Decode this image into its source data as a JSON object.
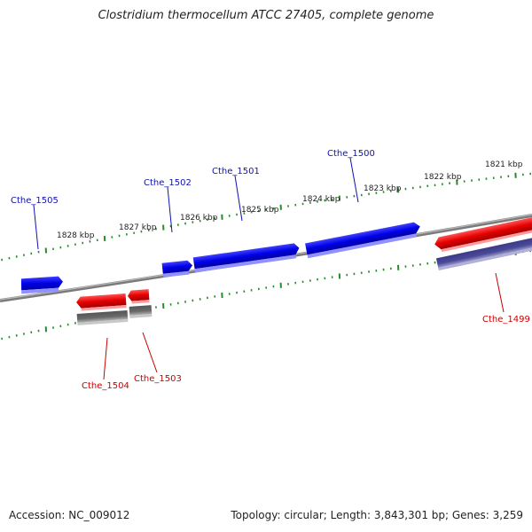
{
  "title": "Clostridium thermocellum ATCC 27405, complete genome",
  "accession_text": "Accession: NC_009012",
  "summary_text": "Topology: circular; Length: 3,843,301 bp; Genes: 3,259",
  "colors": {
    "backbone": "#8a8a8a",
    "ticks": "#2a8a2a",
    "forward_gene": "#0000e6",
    "reverse_gene": "#e60000",
    "grey_feature": "#777777",
    "purple_feature": "#4a4a9a",
    "forward_label": "#1010b0",
    "reverse_label": "#cc0000"
  },
  "tick_labels": [
    "1828 kbp",
    "1827 kbp",
    "1826 kbp",
    "1825 kbp",
    "1824 kbp",
    "1823 kbp",
    "1822 kbp",
    "1821 kbp"
  ],
  "genes": [
    {
      "name": "Cthe_1505",
      "strand": "forward"
    },
    {
      "name": "Cthe_1502",
      "strand": "forward"
    },
    {
      "name": "Cthe_1501",
      "strand": "forward"
    },
    {
      "name": "Cthe_1500",
      "strand": "forward"
    },
    {
      "name": "Cthe_1504",
      "strand": "reverse"
    },
    {
      "name": "Cthe_1503",
      "strand": "reverse"
    },
    {
      "name": "Cthe_1499",
      "strand": "reverse"
    }
  ]
}
